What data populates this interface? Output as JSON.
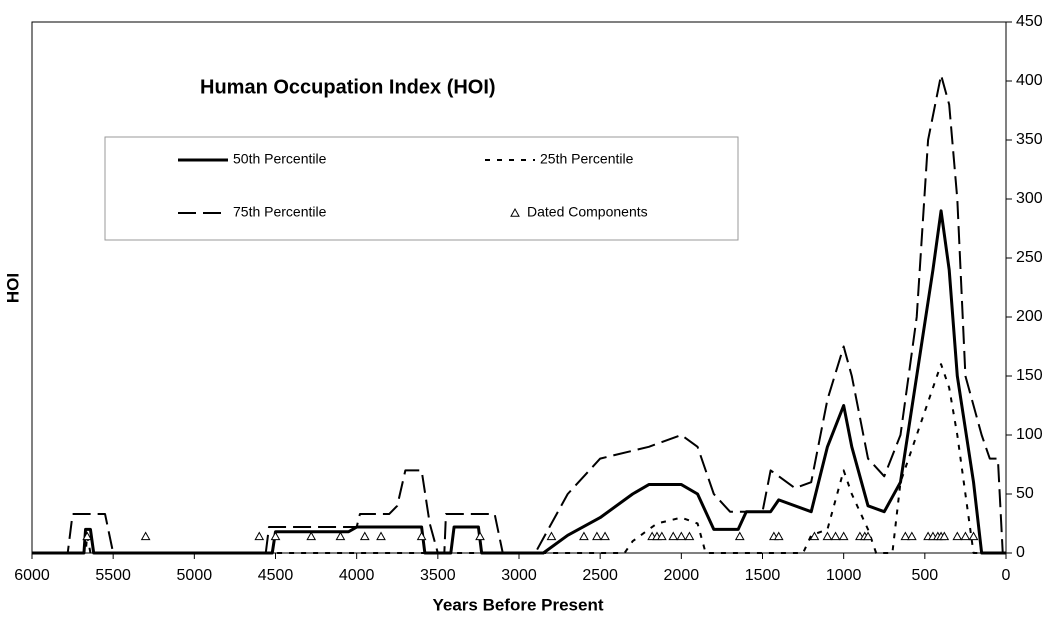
{
  "chart_data": {
    "type": "line",
    "title": "Human Occupation Index (HOI)",
    "xlabel": "Years Before Present",
    "ylabel": "HOI",
    "xlim": [
      6000,
      0
    ],
    "ylim": [
      0,
      450
    ],
    "xticks": [
      6000,
      5500,
      5000,
      4500,
      4000,
      3500,
      3000,
      2500,
      2000,
      1500,
      1000,
      500,
      0
    ],
    "yticks": [
      0,
      50,
      100,
      150,
      200,
      250,
      300,
      350,
      400,
      450
    ],
    "series": [
      {
        "name": "50th Percentile",
        "color": "#000000",
        "style": "solid",
        "x": [
          6000,
          5680,
          5670,
          5640,
          5620,
          4520,
          4500,
          4050,
          4000,
          3600,
          3580,
          3420,
          3400,
          3250,
          3230,
          2850,
          2700,
          2500,
          2300,
          2200,
          2000,
          1900,
          1800,
          1650,
          1600,
          1450,
          1400,
          1200,
          1100,
          1000,
          950,
          850,
          750,
          650,
          550,
          450,
          400,
          350,
          300,
          200,
          150,
          0
        ],
        "values": [
          0,
          0,
          20,
          20,
          0,
          0,
          18,
          18,
          22,
          22,
          0,
          0,
          22,
          22,
          0,
          0,
          15,
          30,
          50,
          58,
          58,
          50,
          20,
          20,
          35,
          35,
          45,
          35,
          90,
          125,
          90,
          40,
          35,
          60,
          150,
          240,
          290,
          240,
          150,
          60,
          0,
          0
        ]
      },
      {
        "name": "25th Percentile",
        "color": "#000000",
        "style": "dotted",
        "x": [
          6000,
          5670,
          5660,
          5640,
          2350,
          2300,
          2150,
          2000,
          1900,
          1850,
          1250,
          1200,
          1100,
          1000,
          950,
          850,
          800,
          700,
          650,
          500,
          400,
          350,
          300,
          250,
          200,
          0
        ],
        "values": [
          0,
          0,
          15,
          0,
          0,
          10,
          25,
          30,
          25,
          0,
          0,
          15,
          20,
          70,
          50,
          20,
          0,
          0,
          60,
          120,
          160,
          140,
          100,
          50,
          0,
          0
        ]
      },
      {
        "name": "75th Percentile",
        "color": "#000000",
        "style": "dashed",
        "x": [
          6000,
          5780,
          5750,
          5550,
          5500,
          4560,
          4540,
          4000,
          3980,
          3800,
          3750,
          3700,
          3600,
          3550,
          3500,
          3460,
          3450,
          3150,
          3100,
          2900,
          2700,
          2500,
          2200,
          2000,
          1900,
          1800,
          1700,
          1500,
          1450,
          1300,
          1200,
          1100,
          1000,
          950,
          850,
          750,
          650,
          550,
          480,
          400,
          350,
          300,
          250,
          150,
          100,
          50,
          20,
          0
        ],
        "values": [
          0,
          0,
          33,
          33,
          0,
          0,
          22,
          22,
          33,
          33,
          40,
          70,
          70,
          25,
          0,
          0,
          33,
          33,
          0,
          0,
          50,
          80,
          90,
          100,
          90,
          50,
          35,
          35,
          70,
          55,
          60,
          130,
          175,
          150,
          80,
          65,
          100,
          200,
          350,
          405,
          380,
          300,
          150,
          100,
          80,
          80,
          0,
          0
        ]
      },
      {
        "name": "Dated Components",
        "color": "#000000",
        "style": "triangle",
        "x": [
          5660,
          5300,
          4600,
          4500,
          4280,
          4100,
          3950,
          3850,
          3600,
          3240,
          2800,
          2600,
          2520,
          2470,
          2180,
          2150,
          2120,
          2050,
          2000,
          1950,
          1640,
          1430,
          1400,
          1180,
          1100,
          1050,
          1000,
          900,
          870,
          850,
          620,
          580,
          480,
          450,
          420,
          400,
          380,
          300,
          250,
          200
        ],
        "values": [
          14,
          14,
          14,
          14,
          14,
          14,
          14,
          14,
          14,
          14,
          14,
          14,
          14,
          14,
          14,
          14,
          14,
          14,
          14,
          14,
          14,
          14,
          14,
          14,
          14,
          14,
          14,
          14,
          14,
          14,
          14,
          14,
          14,
          14,
          14,
          14,
          14,
          14,
          14,
          14
        ]
      }
    ]
  }
}
